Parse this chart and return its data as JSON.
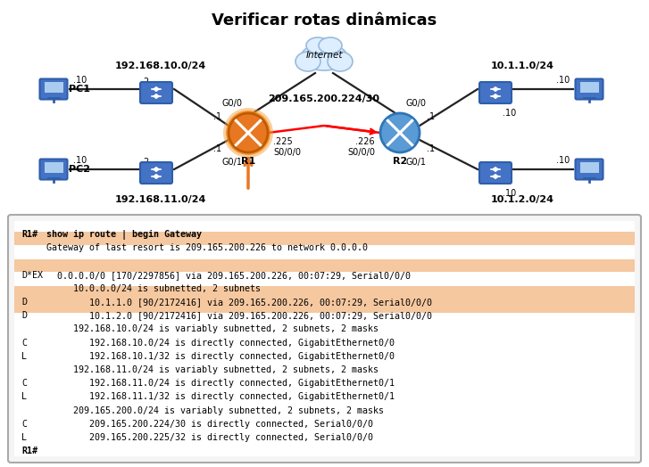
{
  "title": "Verificar rotas dinâmicas",
  "title_fontsize": 13,
  "bg_color": "#ffffff",
  "network_labels": {
    "top_left": "192.168.10.0/24",
    "bot_left": "192.168.11.0/24",
    "serial": "209.165.200.224/30",
    "top_right": "10.1.1.0/24",
    "bot_right": "10.1.2.0/24"
  },
  "iface_labels": {
    "g00": "G0/0",
    "g01": "G0/1",
    "s000": "S0/0/0",
    "r1_dot1_top": ".1",
    "r1_dot2_top": ".2",
    "r1_dot10_top": ".10",
    "r1_dot1_bot": ".1",
    "r1_dot2_bot": ".2",
    "r1_225": ".225",
    "r2_226": ".226",
    "r2_dot1": ".1",
    "dot10": ".10"
  },
  "terminal": {
    "border_color": "#bbbbbb",
    "highlight_color": "#f5c8a0",
    "font_size": 7.2,
    "header": {
      "prompt": "R1#",
      "cmd": " show ip route | begin Gateway"
    },
    "lines": [
      {
        "prefix": "",
        "text": "Gateway of last resort is 209.165.200.226 to network 0.0.0.0",
        "hl": true
      },
      {
        "prefix": "",
        "text": "",
        "hl": false
      },
      {
        "prefix": "D*EX",
        "text": "  0.0.0.0/0 [170/2297856] via 209.165.200.226, 00:07:29, Serial0/0/0",
        "hl": true
      },
      {
        "prefix": "",
        "text": "     10.0.0.0/24 is subnetted, 2 subnets",
        "hl": false
      },
      {
        "prefix": "D",
        "text": "        10.1.1.0 [90/2172416] via 209.165.200.226, 00:07:29, Serial0/0/0",
        "hl": true
      },
      {
        "prefix": "D",
        "text": "        10.1.2.0 [90/2172416] via 209.165.200.226, 00:07:29, Serial0/0/0",
        "hl": true
      },
      {
        "prefix": "",
        "text": "     192.168.10.0/24 is variably subnetted, 2 subnets, 2 masks",
        "hl": false
      },
      {
        "prefix": "C",
        "text": "        192.168.10.0/24 is directly connected, GigabitEthernet0/0",
        "hl": false
      },
      {
        "prefix": "L",
        "text": "        192.168.10.1/32 is directly connected, GigabitEthernet0/0",
        "hl": false
      },
      {
        "prefix": "",
        "text": "     192.168.11.0/24 is variably subnetted, 2 subnets, 2 masks",
        "hl": false
      },
      {
        "prefix": "C",
        "text": "        192.168.11.0/24 is directly connected, GigabitEthernet0/1",
        "hl": false
      },
      {
        "prefix": "L",
        "text": "        192.168.11.1/32 is directly connected, GigabitEthernet0/1",
        "hl": false
      },
      {
        "prefix": "",
        "text": "     209.165.200.0/24 is variably subnetted, 2 subnets, 2 masks",
        "hl": false
      },
      {
        "prefix": "C",
        "text": "        209.165.200.224/30 is directly connected, Serial0/0/0",
        "hl": false
      },
      {
        "prefix": "L",
        "text": "        209.165.200.225/32 is directly connected, Serial0/0/0",
        "hl": false
      },
      {
        "prefix": "R1#",
        "text": "",
        "hl": false
      }
    ]
  }
}
